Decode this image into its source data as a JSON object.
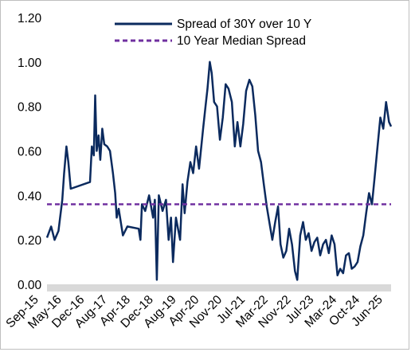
{
  "chart_data": {
    "type": "line",
    "title": "",
    "xlabel": "",
    "ylabel": "",
    "ylim": [
      0,
      1.2
    ],
    "y_ticks": [
      "0.00",
      "0.20",
      "0.40",
      "0.60",
      "0.80",
      "1.00",
      "1.20"
    ],
    "x_tick_labels": [
      "Sep-15",
      "May-16",
      "Dec-16",
      "Aug-17",
      "Apr-18",
      "Dec-18",
      "Aug-19",
      "Apr-20",
      "Nov-20",
      "Jul-21",
      "Mar-22",
      "Nov-22",
      "Jul-23",
      "Mar-24",
      "Oct-24",
      "Jun-25"
    ],
    "grid": false,
    "legend_position": "top-right",
    "colors": {
      "spread": "#0b2a5e",
      "median": "#7030a0",
      "baseline_band": "#d9d9d9"
    },
    "series": [
      {
        "name": "Spread of 30Y over 10 Y",
        "style": "solid",
        "points": [
          [
            "2015-09-01",
            0.21
          ],
          [
            "2015-10-15",
            0.26
          ],
          [
            "2015-11-20",
            0.2
          ],
          [
            "2016-01-01",
            0.24
          ],
          [
            "2016-02-10",
            0.38
          ],
          [
            "2016-03-01",
            0.5
          ],
          [
            "2016-03-25",
            0.62
          ],
          [
            "2016-04-15",
            0.55
          ],
          [
            "2016-05-10",
            0.43
          ],
          [
            "2016-12-01",
            0.46
          ],
          [
            "2016-12-20",
            0.62
          ],
          [
            "2017-01-10",
            0.58
          ],
          [
            "2017-01-25",
            0.85
          ],
          [
            "2017-02-10",
            0.6
          ],
          [
            "2017-03-01",
            0.67
          ],
          [
            "2017-03-20",
            0.56
          ],
          [
            "2017-04-10",
            0.7
          ],
          [
            "2017-05-01",
            0.63
          ],
          [
            "2017-06-01",
            0.62
          ],
          [
            "2017-07-01",
            0.6
          ],
          [
            "2017-08-01",
            0.5
          ],
          [
            "2017-08-25",
            0.41
          ],
          [
            "2017-09-10",
            0.3
          ],
          [
            "2017-10-01",
            0.34
          ],
          [
            "2017-11-15",
            0.22
          ],
          [
            "2018-01-01",
            0.26
          ],
          [
            "2018-05-01",
            0.25
          ],
          [
            "2018-05-20",
            0.2
          ],
          [
            "2018-06-05",
            0.36
          ],
          [
            "2018-07-10",
            0.33
          ],
          [
            "2018-08-20",
            0.4
          ],
          [
            "2018-10-01",
            0.3
          ],
          [
            "2018-10-20",
            0.38
          ],
          [
            "2018-11-10",
            0.02
          ],
          [
            "2018-12-01",
            0.4
          ],
          [
            "2019-01-10",
            0.33
          ],
          [
            "2019-02-15",
            0.38
          ],
          [
            "2019-03-15",
            0.2
          ],
          [
            "2019-04-10",
            0.3
          ],
          [
            "2019-05-01",
            0.1
          ],
          [
            "2019-06-01",
            0.3
          ],
          [
            "2019-07-15",
            0.2
          ],
          [
            "2019-08-10",
            0.45
          ],
          [
            "2019-09-01",
            0.32
          ],
          [
            "2019-10-01",
            0.46
          ],
          [
            "2019-11-01",
            0.55
          ],
          [
            "2019-12-01",
            0.5
          ],
          [
            "2020-01-01",
            0.62
          ],
          [
            "2020-02-01",
            0.52
          ],
          [
            "2020-03-15",
            0.7
          ],
          [
            "2020-04-10",
            0.8
          ],
          [
            "2020-05-01",
            0.88
          ],
          [
            "2020-05-25",
            1.0
          ],
          [
            "2020-06-15",
            0.95
          ],
          [
            "2020-07-10",
            0.82
          ],
          [
            "2020-08-10",
            0.8
          ],
          [
            "2020-09-10",
            0.65
          ],
          [
            "2020-10-10",
            0.75
          ],
          [
            "2020-11-10",
            0.9
          ],
          [
            "2020-12-10",
            0.88
          ],
          [
            "2021-01-15",
            0.82
          ],
          [
            "2021-02-15",
            0.62
          ],
          [
            "2021-03-15",
            0.73
          ],
          [
            "2021-04-15",
            0.62
          ],
          [
            "2021-05-15",
            0.72
          ],
          [
            "2021-06-15",
            0.87
          ],
          [
            "2021-07-20",
            0.92
          ],
          [
            "2021-08-20",
            0.89
          ],
          [
            "2021-09-20",
            0.76
          ],
          [
            "2021-10-20",
            0.6
          ],
          [
            "2021-11-20",
            0.55
          ],
          [
            "2021-12-20",
            0.45
          ],
          [
            "2022-01-20",
            0.35
          ],
          [
            "2022-02-20",
            0.27
          ],
          [
            "2022-03-20",
            0.2
          ],
          [
            "2022-04-20",
            0.28
          ],
          [
            "2022-05-20",
            0.35
          ],
          [
            "2022-06-15",
            0.18
          ],
          [
            "2022-07-15",
            0.12
          ],
          [
            "2022-08-15",
            0.15
          ],
          [
            "2022-09-15",
            0.25
          ],
          [
            "2022-10-15",
            0.18
          ],
          [
            "2022-11-15",
            0.06
          ],
          [
            "2022-12-10",
            0.02
          ],
          [
            "2023-01-10",
            0.22
          ],
          [
            "2023-02-10",
            0.28
          ],
          [
            "2023-03-10",
            0.2
          ],
          [
            "2023-04-10",
            0.23
          ],
          [
            "2023-05-10",
            0.15
          ],
          [
            "2023-06-10",
            0.19
          ],
          [
            "2023-07-10",
            0.21
          ],
          [
            "2023-08-10",
            0.13
          ],
          [
            "2023-09-10",
            0.18
          ],
          [
            "2023-10-10",
            0.2
          ],
          [
            "2023-11-10",
            0.14
          ],
          [
            "2023-12-10",
            0.22
          ],
          [
            "2024-01-10",
            0.18
          ],
          [
            "2024-02-10",
            0.04
          ],
          [
            "2024-03-10",
            0.07
          ],
          [
            "2024-04-10",
            0.05
          ],
          [
            "2024-05-10",
            0.13
          ],
          [
            "2024-06-10",
            0.14
          ],
          [
            "2024-07-10",
            0.07
          ],
          [
            "2024-08-10",
            0.08
          ],
          [
            "2024-09-10",
            0.1
          ],
          [
            "2024-10-10",
            0.17
          ],
          [
            "2024-11-10",
            0.22
          ],
          [
            "2024-12-10",
            0.32
          ],
          [
            "2025-01-10",
            0.41
          ],
          [
            "2025-02-10",
            0.36
          ],
          [
            "2025-03-10",
            0.48
          ],
          [
            "2025-04-10",
            0.62
          ],
          [
            "2025-05-10",
            0.75
          ],
          [
            "2025-06-10",
            0.7
          ],
          [
            "2025-07-10",
            0.82
          ],
          [
            "2025-08-10",
            0.73
          ],
          [
            "2025-09-01",
            0.71
          ]
        ]
      },
      {
        "name": "10 Year Median Spread",
        "style": "dashed",
        "points": [
          [
            "2015-09-01",
            0.36
          ],
          [
            "2025-09-01",
            0.36
          ]
        ]
      }
    ]
  }
}
